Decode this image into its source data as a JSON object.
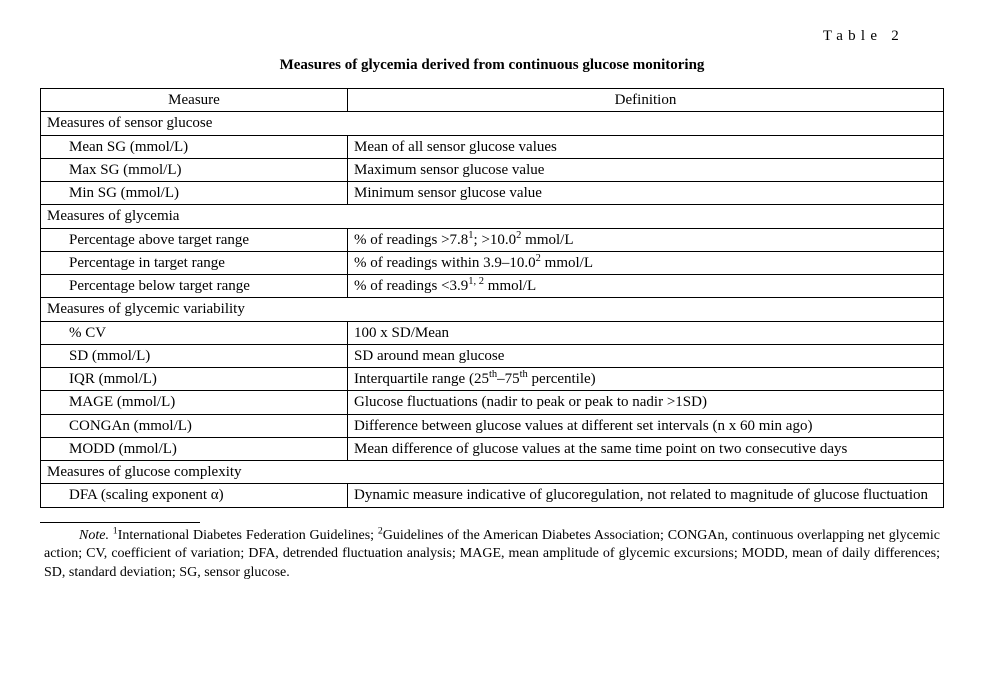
{
  "table_label": "Table 2",
  "caption": "Measures of glycemia derived from continuous glucose monitoring",
  "columns": {
    "measure": "Measure",
    "definition": "Definition"
  },
  "sections": [
    {
      "title": "Measures of sensor glucose",
      "rows": [
        {
          "measure": "Mean SG (mmol/L)",
          "definition": "Mean of all sensor glucose values"
        },
        {
          "measure": "Max SG (mmol/L)",
          "definition": "Maximum sensor glucose value"
        },
        {
          "measure": "Min SG (mmol/L)",
          "definition": "Minimum sensor glucose value"
        }
      ]
    },
    {
      "title": "Measures of glycemia",
      "rows": [
        {
          "measure": "Percentage above target range",
          "definition_html": "% of readings >7.8<sup>1</sup>; >10.0<sup>2</sup> mmol/L"
        },
        {
          "measure": "Percentage in target range",
          "definition_html": "% of readings within 3.9–10.0<sup>2</sup> mmol/L"
        },
        {
          "measure": "Percentage below target range",
          "definition_html": "% of readings <3.9<sup>1, 2</sup> mmol/L"
        }
      ]
    },
    {
      "title": "Measures of glycemic variability",
      "rows": [
        {
          "measure": "% CV",
          "definition": "100 x SD/Mean"
        },
        {
          "measure": "SD (mmol/L)",
          "definition": "SD around mean glucose"
        },
        {
          "measure": "IQR (mmol/L)",
          "definition_html": "Interquartile range (25<sup>th</sup>–75<sup>th</sup> percentile)"
        },
        {
          "measure": "MAGE (mmol/L)",
          "definition": "Glucose fluctuations (nadir to peak or peak to nadir >1SD)"
        },
        {
          "measure": "CONGAn (mmol/L)",
          "definition": "Difference between glucose values at different set intervals (n x 60 min ago)"
        },
        {
          "measure": "MODD (mmol/L)",
          "definition": "Mean difference of glucose values at the same time point on two consecutive days"
        }
      ]
    },
    {
      "title": "Measures of glucose complexity",
      "rows": [
        {
          "measure": "DFA (scaling exponent α)",
          "definition": "Dynamic measure indicative of glucoregulation, not related to magnitude of glucose fluctuation"
        }
      ]
    }
  ],
  "footnote_html": "<i>Note.</i> <sup>1</sup>International Diabetes Federation Guidelines; <sup>2</sup>Guidelines of the American Diabetes Association; CONGAn, continuous overlapping net glycemic action; CV, coefficient of variation; DFA, detrended fluctuation analysis; MAGE, mean amplitude of glycemic excursions; MODD, mean of daily differences; SD, standard deviation; SG, sensor glucose."
}
